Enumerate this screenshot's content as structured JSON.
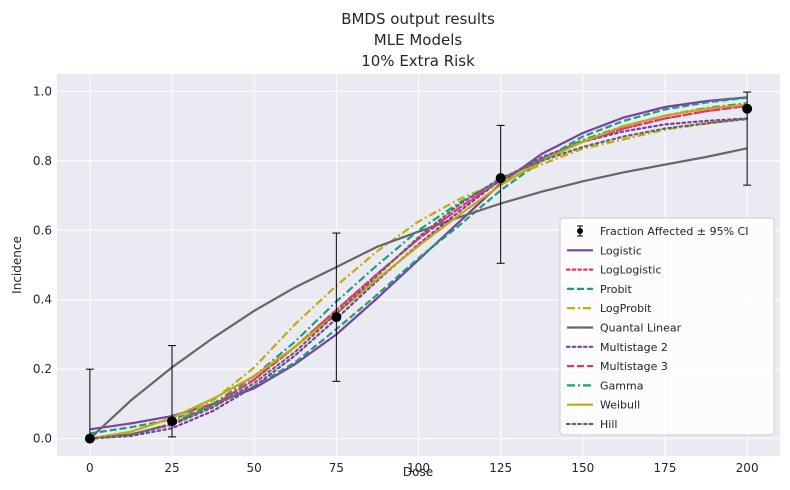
{
  "chart_data": {
    "type": "line",
    "title": [
      "BMDS output results",
      "MLE Models",
      "10% Extra Risk"
    ],
    "xlabel": "Dose",
    "ylabel": "Incidence",
    "xlim": [
      -10,
      210
    ],
    "ylim": [
      -0.05,
      1.05
    ],
    "xticks": [
      0,
      25,
      50,
      75,
      100,
      125,
      150,
      175,
      200
    ],
    "yticks": [
      0.0,
      0.2,
      0.4,
      0.6,
      0.8,
      1.0
    ],
    "grid": true,
    "legend_position": "lower-right",
    "observed": {
      "name": "Fraction Affected ± 95% CI",
      "color": "#000000",
      "x": [
        0,
        25,
        75,
        125,
        200
      ],
      "y": [
        0.0,
        0.05,
        0.35,
        0.75,
        0.95
      ],
      "ci_low": [
        0.0,
        0.005,
        0.165,
        0.505,
        0.73
      ],
      "ci_high": [
        0.2,
        0.268,
        0.592,
        0.902,
        0.998
      ]
    },
    "x": [
      0,
      12.5,
      25,
      37.5,
      50,
      62.5,
      75,
      87.5,
      100,
      112.5,
      125,
      137.5,
      150,
      162.5,
      175,
      187.5,
      200
    ],
    "series": [
      {
        "name": "Logistic",
        "color": "#7b3fa6",
        "dash": "solid",
        "values": [
          0.027,
          0.044,
          0.065,
          0.1,
          0.145,
          0.215,
          0.3,
          0.405,
          0.515,
          0.625,
          0.735,
          0.82,
          0.88,
          0.925,
          0.955,
          0.972,
          0.983
        ]
      },
      {
        "name": "LogLogistic",
        "color": "#e8307a",
        "dash": "dot",
        "values": [
          0.0,
          0.012,
          0.042,
          0.095,
          0.17,
          0.265,
          0.37,
          0.475,
          0.575,
          0.665,
          0.745,
          0.805,
          0.855,
          0.893,
          0.922,
          0.943,
          0.958
        ]
      },
      {
        "name": "Probit",
        "color": "#1f9e76",
        "dash": "dashed",
        "values": [
          0.015,
          0.033,
          0.055,
          0.095,
          0.15,
          0.22,
          0.315,
          0.415,
          0.52,
          0.615,
          0.715,
          0.8,
          0.87,
          0.915,
          0.948,
          0.968,
          0.982
        ]
      },
      {
        "name": "LogProbit",
        "color": "#c5a80b",
        "dash": "dashdot",
        "values": [
          0.0,
          0.01,
          0.045,
          0.11,
          0.205,
          0.33,
          0.44,
          0.54,
          0.625,
          0.69,
          0.74,
          0.79,
          0.835,
          0.862,
          0.89,
          0.907,
          0.922
        ]
      },
      {
        "name": "Quantal Linear",
        "color": "#666666",
        "dash": "solid",
        "values": [
          0.0,
          0.11,
          0.205,
          0.29,
          0.368,
          0.436,
          0.494,
          0.553,
          0.596,
          0.638,
          0.677,
          0.711,
          0.741,
          0.767,
          0.789,
          0.811,
          0.836
        ]
      },
      {
        "name": "Multistage 2",
        "color": "#7b3fa6",
        "dash": "dot",
        "values": [
          0.0,
          0.008,
          0.03,
          0.08,
          0.15,
          0.24,
          0.345,
          0.455,
          0.56,
          0.655,
          0.745,
          0.81,
          0.855,
          0.885,
          0.905,
          0.915,
          0.922
        ]
      },
      {
        "name": "Multistage 3",
        "color": "#e8307a",
        "dash": "dashed",
        "values": [
          0.0,
          0.012,
          0.042,
          0.095,
          0.17,
          0.265,
          0.37,
          0.475,
          0.575,
          0.665,
          0.745,
          0.805,
          0.855,
          0.893,
          0.922,
          0.943,
          0.958
        ]
      },
      {
        "name": "Gamma",
        "color": "#1f9e76",
        "dash": "dashdot",
        "values": [
          0.0,
          0.012,
          0.042,
          0.1,
          0.18,
          0.28,
          0.395,
          0.5,
          0.6,
          0.68,
          0.745,
          0.805,
          0.86,
          0.9,
          0.93,
          0.952,
          0.966
        ]
      },
      {
        "name": "Weibull",
        "color": "#c5a80b",
        "dash": "solid",
        "values": [
          0.0,
          0.02,
          0.06,
          0.115,
          0.18,
          0.265,
          0.36,
          0.46,
          0.555,
          0.645,
          0.73,
          0.8,
          0.855,
          0.9,
          0.93,
          0.95,
          0.962
        ]
      },
      {
        "name": "Hill",
        "color": "#666666",
        "dash": "dot",
        "values": [
          0.0,
          0.012,
          0.04,
          0.09,
          0.16,
          0.25,
          0.36,
          0.47,
          0.58,
          0.675,
          0.75,
          0.8,
          0.84,
          0.87,
          0.893,
          0.908,
          0.92
        ]
      }
    ]
  }
}
